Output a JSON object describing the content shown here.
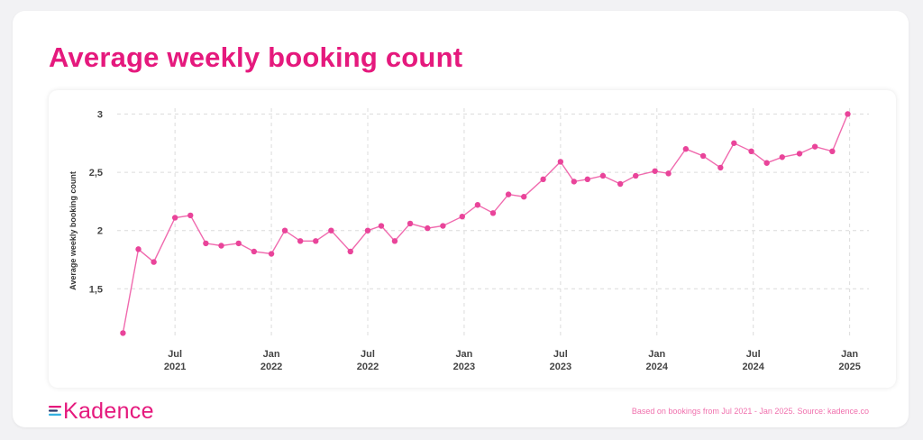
{
  "title": "Average weekly booking count",
  "logo_text": "Kadence",
  "footnote": "Based on bookings from Jul 2021 - Jan 2025. Source: kadence.co",
  "colors": {
    "accent": "#e5197d",
    "line": "#f06aae",
    "point": "#e9449a",
    "grid": "#dcdcdc"
  },
  "chart_data": {
    "type": "line",
    "title": "Average weekly booking count",
    "xlabel": "",
    "ylabel": "Average weekly booking count",
    "ylim": [
      1.1,
      3.05
    ],
    "yticks": [
      1.5,
      2,
      2.5,
      3
    ],
    "ytick_labels": [
      "1,5",
      "2",
      "2,5",
      "3"
    ],
    "xlim": [
      2021.2,
      2025.1
    ],
    "xticks": [
      {
        "x": 2021.5,
        "line1": "Jul",
        "line2": "2021"
      },
      {
        "x": 2022.0,
        "line1": "Jan",
        "line2": "2022"
      },
      {
        "x": 2022.5,
        "line1": "Jul",
        "line2": "2022"
      },
      {
        "x": 2023.0,
        "line1": "Jan",
        "line2": "2023"
      },
      {
        "x": 2023.5,
        "line1": "Jul",
        "line2": "2023"
      },
      {
        "x": 2024.0,
        "line1": "Jan",
        "line2": "2024"
      },
      {
        "x": 2024.5,
        "line1": "Jul",
        "line2": "2024"
      },
      {
        "x": 2025.0,
        "line1": "Jan",
        "line2": "2025"
      }
    ],
    "grid": true,
    "series": [
      {
        "points": [
          [
            2021.23,
            1.12
          ],
          [
            2021.31,
            1.84
          ],
          [
            2021.39,
            1.73
          ],
          [
            2021.5,
            2.11
          ],
          [
            2021.58,
            2.13
          ],
          [
            2021.66,
            1.89
          ],
          [
            2021.74,
            1.87
          ],
          [
            2021.83,
            1.89
          ],
          [
            2021.91,
            1.82
          ],
          [
            2022.0,
            1.8
          ],
          [
            2022.07,
            2.0
          ],
          [
            2022.15,
            1.91
          ],
          [
            2022.23,
            1.91
          ],
          [
            2022.31,
            2.0
          ],
          [
            2022.41,
            1.82
          ],
          [
            2022.5,
            2.0
          ],
          [
            2022.57,
            2.04
          ],
          [
            2022.64,
            1.91
          ],
          [
            2022.72,
            2.06
          ],
          [
            2022.81,
            2.02
          ],
          [
            2022.89,
            2.04
          ],
          [
            2022.99,
            2.12
          ],
          [
            2023.07,
            2.22
          ],
          [
            2023.15,
            2.15
          ],
          [
            2023.23,
            2.31
          ],
          [
            2023.31,
            2.29
          ],
          [
            2023.41,
            2.44
          ],
          [
            2023.5,
            2.59
          ],
          [
            2023.57,
            2.42
          ],
          [
            2023.64,
            2.44
          ],
          [
            2023.72,
            2.47
          ],
          [
            2023.81,
            2.4
          ],
          [
            2023.89,
            2.47
          ],
          [
            2023.99,
            2.51
          ],
          [
            2024.06,
            2.49
          ],
          [
            2024.15,
            2.7
          ],
          [
            2024.24,
            2.64
          ],
          [
            2024.33,
            2.54
          ],
          [
            2024.4,
            2.75
          ],
          [
            2024.49,
            2.68
          ],
          [
            2024.57,
            2.58
          ],
          [
            2024.65,
            2.63
          ],
          [
            2024.74,
            2.66
          ],
          [
            2024.82,
            2.72
          ],
          [
            2024.91,
            2.68
          ],
          [
            2024.99,
            3.0
          ]
        ]
      }
    ]
  }
}
